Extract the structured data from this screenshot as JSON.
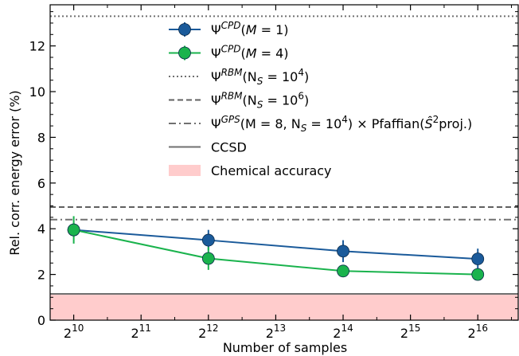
{
  "chart_data": {
    "type": "line",
    "xlabel": "Number of samples",
    "ylabel": "Rel. corr. energy error (%)",
    "x_scale": "log2",
    "xlim_exponent": [
      9.65,
      16.6
    ],
    "ylim": [
      0,
      13.8
    ],
    "x_ticks": [
      {
        "exp": 10,
        "base": "2",
        "sup": "10"
      },
      {
        "exp": 11,
        "base": "2",
        "sup": "11"
      },
      {
        "exp": 12,
        "base": "2",
        "sup": "12"
      },
      {
        "exp": 13,
        "base": "2",
        "sup": "13"
      },
      {
        "exp": 14,
        "base": "2",
        "sup": "14"
      },
      {
        "exp": 15,
        "base": "2",
        "sup": "15"
      },
      {
        "exp": 16,
        "base": "2",
        "sup": "16"
      }
    ],
    "y_ticks": [
      0,
      2,
      4,
      6,
      8,
      10,
      12
    ],
    "grid": false,
    "legend_position": "top-center",
    "series": [
      {
        "kind": "errorbar",
        "legend_parts": [
          {
            "t": "Ψ"
          },
          {
            "t": "CPD",
            "sup": true,
            "it": true
          },
          {
            "t": "(M = 1)",
            "it_chars": "M"
          }
        ],
        "color": "#1a5a9a",
        "x_exp": [
          10,
          12,
          14,
          16
        ],
        "y": [
          3.95,
          3.5,
          3.02,
          2.68
        ],
        "yerr": [
          0.3,
          0.45,
          0.48,
          0.45
        ]
      },
      {
        "kind": "errorbar",
        "legend_parts": [
          {
            "t": "Ψ"
          },
          {
            "t": "CPD",
            "sup": true,
            "it": true
          },
          {
            "t": "(M = 4)",
            "it_chars": "M"
          }
        ],
        "color": "#1ab34d",
        "x_exp": [
          10,
          12,
          14,
          16
        ],
        "y": [
          3.95,
          2.7,
          2.15,
          2.0
        ],
        "yerr": [
          0.6,
          0.5,
          0.2,
          0.15
        ]
      },
      {
        "kind": "hline",
        "legend_parts": [
          {
            "t": "Ψ"
          },
          {
            "t": "RBM",
            "sup": true,
            "it": true
          },
          {
            "t": "(N"
          },
          {
            "t": "S",
            "sub": true,
            "it": true
          },
          {
            "t": " = 10"
          },
          {
            "t": "4",
            "sup": true
          },
          {
            "t": ")"
          }
        ],
        "color": "#707070",
        "dash": "dotted",
        "y": 13.3
      },
      {
        "kind": "hline",
        "legend_parts": [
          {
            "t": "Ψ"
          },
          {
            "t": "RBM",
            "sup": true,
            "it": true
          },
          {
            "t": "(N"
          },
          {
            "t": "S",
            "sub": true,
            "it": true
          },
          {
            "t": " = 10"
          },
          {
            "t": "6",
            "sup": true
          },
          {
            "t": ")"
          }
        ],
        "color": "#606060",
        "dash": "dashed",
        "y": 4.95
      },
      {
        "kind": "hline",
        "legend_parts": [
          {
            "t": "Ψ"
          },
          {
            "t": "GPS",
            "sup": true,
            "it": true
          },
          {
            "t": "(M = 8, N"
          },
          {
            "t": "S",
            "sub": true,
            "it": true
          },
          {
            "t": " = 10"
          },
          {
            "t": "4",
            "sup": true
          },
          {
            "t": ") × Pfaffian("
          },
          {
            "t": "Ŝ",
            "it": true
          },
          {
            "t": "2",
            "sup": true
          },
          {
            "t": "proj.)"
          }
        ],
        "color": "#707070",
        "dash": "dashdot",
        "y": 4.4
      },
      {
        "kind": "hline",
        "legend_parts": [
          {
            "t": "CCSD"
          }
        ],
        "color": "#707070",
        "dash": "solid",
        "y": 1.15
      },
      {
        "kind": "band",
        "legend_parts": [
          {
            "t": "Chemical accuracy"
          }
        ],
        "color": "#ffcccc",
        "y0": 0,
        "y1": 1.15
      }
    ]
  }
}
